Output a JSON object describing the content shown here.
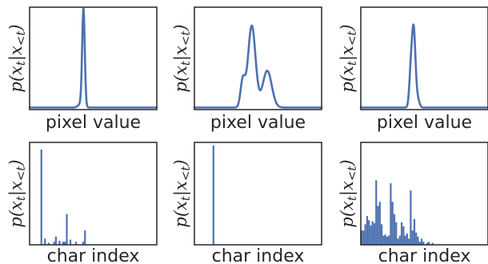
{
  "labels": {
    "y": "p(x_t|x_<t)",
    "x_top": "pixel value",
    "x_bottom": "char index"
  },
  "colors": {
    "series": "#4c72b0",
    "axes": "#262626"
  },
  "chart_data": [
    {
      "type": "line",
      "xlabel": "pixel value",
      "ylabel": "p(x_t|x_<t)",
      "xlim": [
        0,
        255
      ],
      "ylim": [
        0,
        1
      ],
      "grid": false,
      "baseline": 0.02,
      "components": [
        {
          "mu": 108,
          "sigma": 2.6,
          "amp": 0.95
        },
        {
          "mu": 103,
          "sigma": 5,
          "amp": 0.04
        }
      ]
    },
    {
      "type": "line",
      "xlabel": "pixel value",
      "ylabel": "p(x_t|x_<t)",
      "xlim": [
        0,
        255
      ],
      "ylim": [
        0,
        1
      ],
      "grid": false,
      "baseline": 0.02,
      "components": [
        {
          "mu": 115,
          "sigma": 7.5,
          "amp": 0.8
        },
        {
          "mu": 146,
          "sigma": 9,
          "amp": 0.36
        },
        {
          "mu": 97,
          "sigma": 4.5,
          "amp": 0.26
        }
      ]
    },
    {
      "type": "line",
      "xlabel": "pixel value",
      "ylabel": "p(x_t|x_<t)",
      "xlim": [
        0,
        255
      ],
      "ylim": [
        0,
        1
      ],
      "grid": false,
      "baseline": 0.02,
      "components": [
        {
          "mu": 106,
          "sigma": 3.5,
          "amp": 0.76
        },
        {
          "mu": 100,
          "sigma": 3,
          "amp": 0.3
        },
        {
          "mu": 114,
          "sigma": 3.5,
          "amp": 0.08
        }
      ]
    },
    {
      "type": "bar",
      "xlabel": "char index",
      "ylabel": "p(x_t|x_<t)",
      "xlim": [
        0,
        70
      ],
      "ylim": [
        0,
        1
      ],
      "grid": false,
      "indices": [
        6,
        8,
        10,
        13,
        14,
        16,
        18,
        19,
        20,
        22,
        25,
        29,
        30
      ],
      "values": [
        0.93,
        0.06,
        0.02,
        0.03,
        0.08,
        0.04,
        0.03,
        0.03,
        0.3,
        0.05,
        0.03,
        0.03,
        0.14
      ]
    },
    {
      "type": "bar",
      "xlabel": "char index",
      "ylabel": "p(x_t|x_<t)",
      "xlim": [
        0,
        70
      ],
      "ylim": [
        0,
        1
      ],
      "grid": false,
      "indices": [
        10
      ],
      "values": [
        0.97
      ]
    },
    {
      "type": "bar",
      "xlabel": "char index",
      "ylabel": "p(x_t|x_<t)",
      "xlim": [
        0,
        70
      ],
      "ylim": [
        0,
        1
      ],
      "grid": false,
      "indices": [
        0,
        1,
        2,
        3,
        4,
        5,
        6,
        7,
        8,
        9,
        10,
        11,
        12,
        13,
        14,
        15,
        16,
        17,
        18,
        19,
        20,
        21,
        22,
        23,
        24,
        25,
        26,
        27,
        28,
        29,
        30,
        31,
        32,
        33,
        34,
        35,
        36,
        37,
        38,
        39
      ],
      "values": [
        0.14,
        0.14,
        0.2,
        0.28,
        0.24,
        0.19,
        0.23,
        0.21,
        0.63,
        0.38,
        0.42,
        0.2,
        0.09,
        0.1,
        0.08,
        0.09,
        0.6,
        0.42,
        0.3,
        0.22,
        0.06,
        0.09,
        0.22,
        0.18,
        0.09,
        0.11,
        0.06,
        0.53,
        0.14,
        0.25,
        0.12,
        0.08,
        0.03,
        0.06,
        0.03,
        0.0,
        0.02,
        0.03,
        0.0,
        0.02
      ]
    }
  ]
}
